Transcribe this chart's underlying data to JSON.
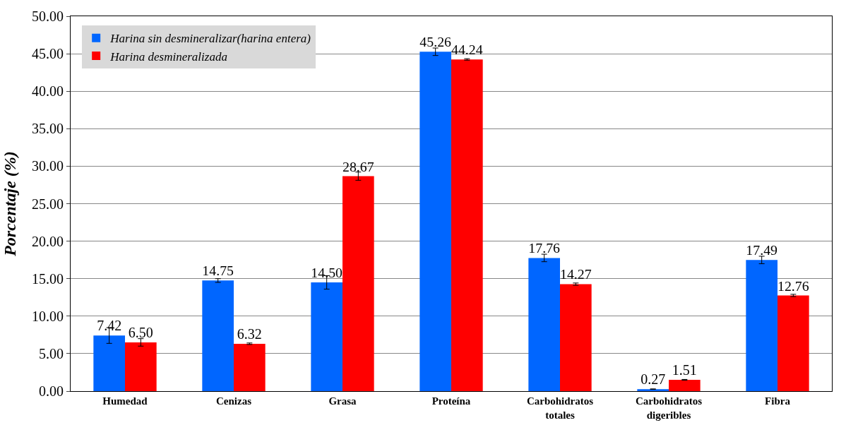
{
  "chart_data": {
    "type": "bar",
    "ylabel": "Porcentaje (%)",
    "categories": [
      "Humedad",
      "Cenizas",
      "Grasa",
      "Proteína",
      "Carbohidratos totales",
      "Carbohidratos digeribles",
      "Fibra"
    ],
    "series": [
      {
        "name": "Harina sin desmineralizar(harina entera)",
        "color": "#0066ff",
        "values": [
          7.42,
          14.75,
          14.5,
          45.26,
          17.76,
          0.27,
          17.49
        ],
        "value_labels": [
          "7.42",
          "14.75",
          "14.50",
          "45.26",
          "17.76",
          "0.27",
          "17.49"
        ],
        "errors": [
          1.05,
          0.25,
          0.9,
          0.5,
          0.5,
          0.02,
          0.5
        ]
      },
      {
        "name": "Harina desmineralizada",
        "color": "#ff0000",
        "values": [
          6.5,
          6.32,
          28.67,
          44.24,
          14.27,
          1.51,
          12.76
        ],
        "value_labels": [
          "6.50",
          "6.32",
          "28.67",
          "44.24",
          "14.27",
          "1.51",
          "12.76"
        ],
        "errors": [
          0.5,
          0.1,
          0.55,
          0.1,
          0.15,
          0.05,
          0.15
        ]
      }
    ],
    "ylim": [
      0,
      50
    ],
    "yticks": [
      {
        "value": 0,
        "label": "0.00"
      },
      {
        "value": 5,
        "label": "5.00"
      },
      {
        "value": 10,
        "label": "10.00"
      },
      {
        "value": 15,
        "label": "15.00"
      },
      {
        "value": 20,
        "label": "20.00"
      },
      {
        "value": 25,
        "label": "25.00"
      },
      {
        "value": 30,
        "label": "30.00"
      },
      {
        "value": 35,
        "label": "35.00"
      },
      {
        "value": 40,
        "label": "40.00"
      },
      {
        "value": 45,
        "label": "45.00"
      },
      {
        "value": 50,
        "label": "50.00"
      }
    ],
    "grid": "y",
    "legend": "top left"
  }
}
